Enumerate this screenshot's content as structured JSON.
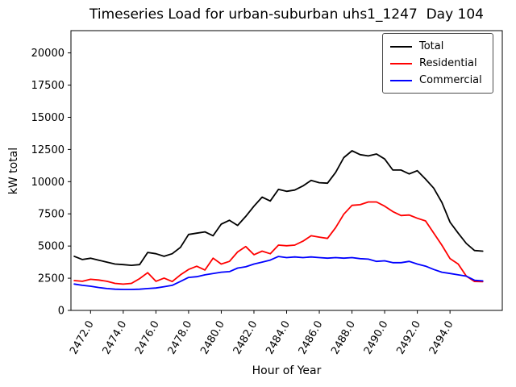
{
  "window": {
    "background": "#ffffff"
  },
  "title": "Timeseries Load for urban-suburban uhs1_1247  Day 104",
  "axes": {
    "xlabel": "Hour of Year",
    "ylabel": "kW total"
  },
  "legend": {
    "entries": [
      {
        "label": "Total",
        "color": "#000000"
      },
      {
        "label": "Residential",
        "color": "#ff0000"
      },
      {
        "label": "Commercial",
        "color": "#0000ff"
      }
    ]
  },
  "chart_data": {
    "type": "line",
    "title": "Timeseries Load for urban-suburban uhs1_1247  Day 104",
    "xlabel": "Hour of Year",
    "ylabel": "kW total",
    "legend_position": "upper right",
    "grid": false,
    "x_tick_rotation": 60,
    "xlim": [
      2470.8,
      2497.2
    ],
    "ylim": [
      0,
      21730
    ],
    "xticks": [
      2472,
      2474,
      2476,
      2478,
      2480,
      2482,
      2484,
      2486,
      2488,
      2490,
      2492,
      2494
    ],
    "xtick_labels": [
      "2472.0",
      "2474.0",
      "2476.0",
      "2478.0",
      "2480.0",
      "2482.0",
      "2484.0",
      "2486.0",
      "2488.0",
      "2490.0",
      "2492.0",
      "2494.0"
    ],
    "yticks": [
      0,
      2500,
      5000,
      7500,
      10000,
      12500,
      15000,
      17500,
      20000
    ],
    "ytick_labels": [
      "0",
      "2500",
      "5000",
      "7500",
      "10000",
      "12500",
      "15000",
      "17500",
      "20000"
    ],
    "x": [
      2471.0,
      2471.5,
      2472.0,
      2472.5,
      2473.0,
      2473.5,
      2474.0,
      2474.5,
      2475.0,
      2475.5,
      2476.0,
      2476.5,
      2477.0,
      2477.5,
      2478.0,
      2478.5,
      2479.0,
      2479.5,
      2480.0,
      2480.5,
      2481.0,
      2481.5,
      2482.0,
      2482.5,
      2483.0,
      2483.5,
      2484.0,
      2484.5,
      2485.0,
      2485.5,
      2486.0,
      2486.5,
      2487.0,
      2487.5,
      2488.0,
      2488.5,
      2489.0,
      2489.5,
      2490.0,
      2490.5,
      2491.0,
      2491.5,
      2492.0,
      2492.5,
      2493.0,
      2493.5,
      2494.0,
      2494.5,
      2495.0,
      2495.5,
      2496.0
    ],
    "series": [
      {
        "name": "Total",
        "color": "#000000",
        "values": [
          4200,
          3950,
          4050,
          3900,
          3750,
          3600,
          3560,
          3500,
          3560,
          4500,
          4400,
          4200,
          4400,
          4900,
          5900,
          6000,
          6100,
          5800,
          6700,
          7000,
          6600,
          7300,
          8100,
          8800,
          8500,
          9400,
          9250,
          9350,
          9670,
          10100,
          9920,
          9880,
          10720,
          11870,
          12400,
          12100,
          12000,
          12150,
          11760,
          10900,
          10900,
          10600,
          10850,
          10200,
          9500,
          8400,
          6850,
          6000,
          5200,
          4650,
          4600
        ]
      },
      {
        "name": "Residential",
        "color": "#ff0000",
        "values": [
          2320,
          2260,
          2420,
          2360,
          2260,
          2100,
          2040,
          2100,
          2470,
          2930,
          2260,
          2510,
          2240,
          2760,
          3180,
          3430,
          3140,
          4060,
          3600,
          3810,
          4540,
          4960,
          4330,
          4600,
          4400,
          5070,
          5020,
          5070,
          5380,
          5800,
          5690,
          5590,
          6430,
          7470,
          8160,
          8210,
          8420,
          8420,
          8100,
          7680,
          7370,
          7410,
          7160,
          6950,
          6010,
          5070,
          4020,
          3600,
          2660,
          2250,
          2230
        ]
      },
      {
        "name": "Commercial",
        "color": "#0000ff",
        "values": [
          2050,
          1950,
          1880,
          1780,
          1700,
          1650,
          1630,
          1630,
          1650,
          1700,
          1740,
          1840,
          1950,
          2250,
          2560,
          2620,
          2760,
          2870,
          2970,
          3010,
          3290,
          3390,
          3600,
          3750,
          3910,
          4190,
          4100,
          4150,
          4100,
          4150,
          4100,
          4060,
          4100,
          4060,
          4100,
          4020,
          3980,
          3810,
          3850,
          3710,
          3710,
          3810,
          3600,
          3440,
          3180,
          2970,
          2870,
          2760,
          2660,
          2340,
          2290
        ]
      }
    ]
  }
}
